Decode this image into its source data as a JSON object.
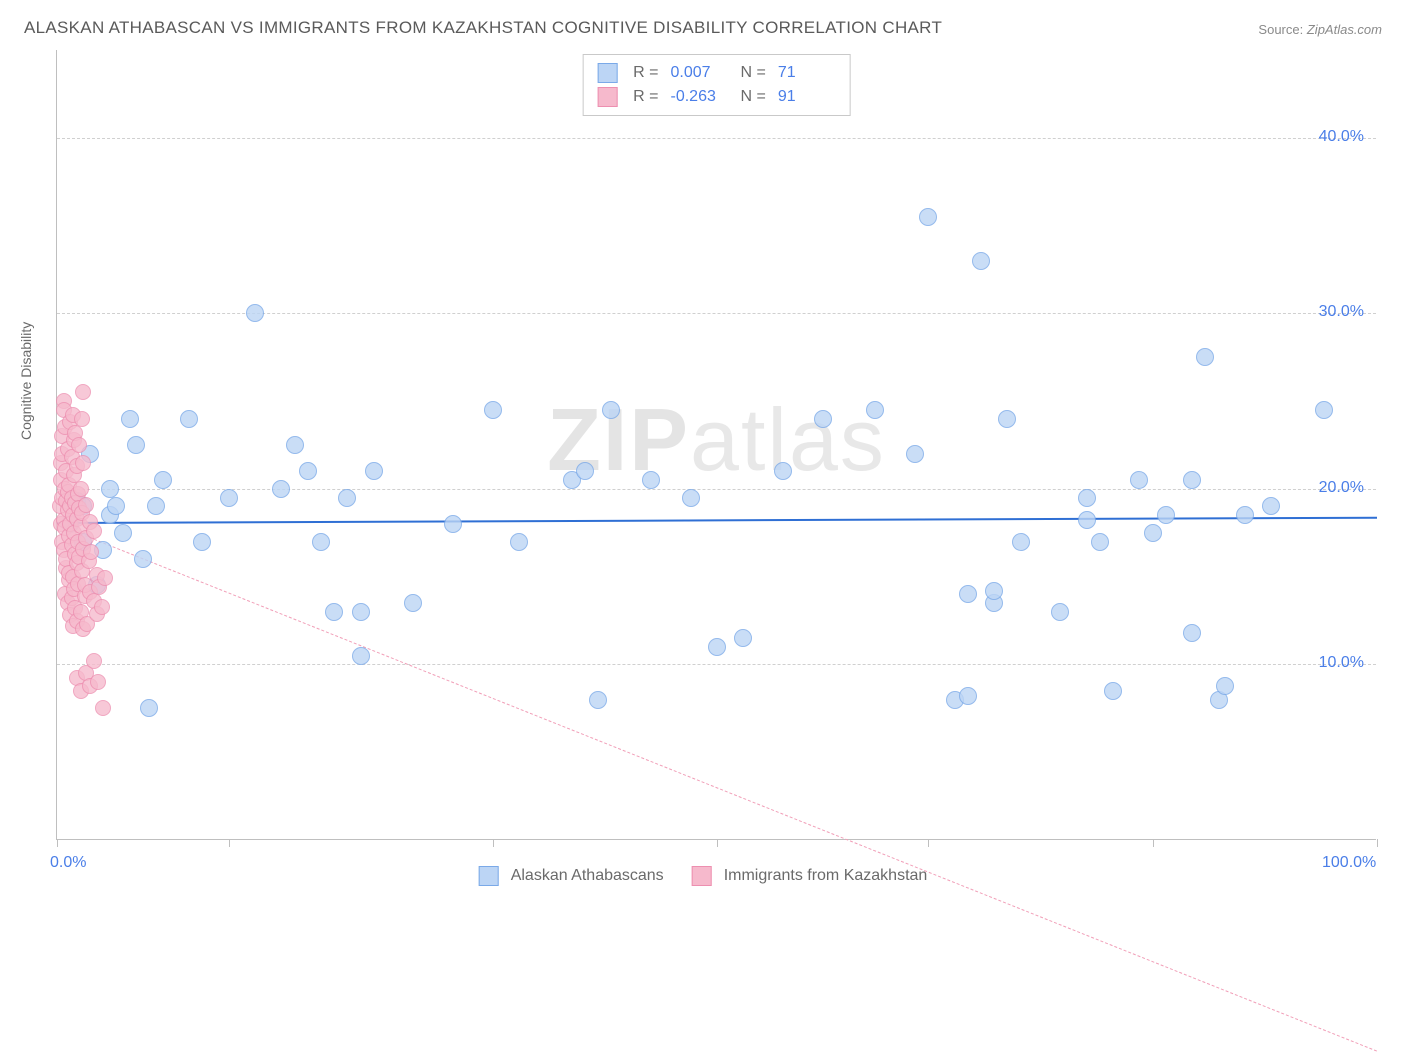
{
  "title": "ALASKAN ATHABASCAN VS IMMIGRANTS FROM KAZAKHSTAN COGNITIVE DISABILITY CORRELATION CHART",
  "source_label": "Source:",
  "source_value": "ZipAtlas.com",
  "ylabel": "Cognitive Disability",
  "watermark_bold": "ZIP",
  "watermark_light": "atlas",
  "chart": {
    "type": "scatter",
    "xlim": [
      0,
      100
    ],
    "ylim": [
      0,
      45
    ],
    "x_ticks": [
      0,
      13,
      33,
      50,
      66,
      83,
      100
    ],
    "x_tick_labels": {
      "0": "0.0%",
      "100": "100.0%"
    },
    "y_gridlines": [
      10,
      20,
      30,
      40
    ],
    "y_tick_labels": [
      "10.0%",
      "20.0%",
      "30.0%",
      "40.0%"
    ],
    "background_color": "#ffffff",
    "grid_color": "#d0d0d0",
    "axis_color": "#bfbfbf",
    "font_color_axis": "#4a7ee8",
    "font_color_label": "#6a6a6a",
    "title_fontsize": 17,
    "label_fontsize": 14,
    "tick_fontsize": 16
  },
  "series": [
    {
      "name": "Alaskan Athabascans",
      "fill": "#bcd5f5",
      "stroke": "#7aa9e8",
      "marker_r": 9,
      "opacity": 0.8,
      "trend": {
        "y_start": 18.1,
        "y_end": 18.4,
        "color": "#2f6fd4",
        "width": 2,
        "dash": false
      },
      "legend": {
        "R": "0.007",
        "N": "71"
      },
      "points": [
        [
          1,
          18
        ],
        [
          1.5,
          19.3
        ],
        [
          2,
          17
        ],
        [
          2,
          19
        ],
        [
          2.5,
          22
        ],
        [
          3,
          14.5
        ],
        [
          3.5,
          16.5
        ],
        [
          4,
          18.5
        ],
        [
          4,
          20
        ],
        [
          4.5,
          19
        ],
        [
          5,
          17.5
        ],
        [
          5.5,
          24
        ],
        [
          6,
          22.5
        ],
        [
          6.5,
          16
        ],
        [
          7,
          7.5
        ],
        [
          7.5,
          19
        ],
        [
          8,
          20.5
        ],
        [
          10,
          24
        ],
        [
          11,
          17
        ],
        [
          13,
          19.5
        ],
        [
          15,
          30
        ],
        [
          17,
          20
        ],
        [
          18,
          22.5
        ],
        [
          19,
          21
        ],
        [
          20,
          17
        ],
        [
          21,
          13
        ],
        [
          22,
          19.5
        ],
        [
          23,
          10.5
        ],
        [
          23,
          13
        ],
        [
          24,
          21
        ],
        [
          27,
          13.5
        ],
        [
          30,
          18
        ],
        [
          33,
          24.5
        ],
        [
          35,
          17
        ],
        [
          39,
          20.5
        ],
        [
          40,
          21
        ],
        [
          41,
          8
        ],
        [
          42,
          24.5
        ],
        [
          45,
          20.5
        ],
        [
          48,
          19.5
        ],
        [
          50,
          11
        ],
        [
          52,
          11.5
        ],
        [
          55,
          21
        ],
        [
          58,
          24
        ],
        [
          62,
          24.5
        ],
        [
          65,
          22
        ],
        [
          66,
          35.5
        ],
        [
          68,
          8
        ],
        [
          69,
          8.2
        ],
        [
          69,
          14
        ],
        [
          70,
          33
        ],
        [
          71,
          13.5
        ],
        [
          71,
          14.2
        ],
        [
          72,
          24
        ],
        [
          73,
          17
        ],
        [
          76,
          13
        ],
        [
          78,
          19.5
        ],
        [
          78,
          18.2
        ],
        [
          79,
          17
        ],
        [
          80,
          8.5
        ],
        [
          82,
          20.5
        ],
        [
          83,
          17.5
        ],
        [
          84,
          18.5
        ],
        [
          86,
          11.8
        ],
        [
          86,
          20.5
        ],
        [
          87,
          27.5
        ],
        [
          88,
          8
        ],
        [
          88.5,
          8.8
        ],
        [
          90,
          18.5
        ],
        [
          92,
          19
        ],
        [
          96,
          24.5
        ]
      ]
    },
    {
      "name": "Immigrants from Kazakhstan",
      "fill": "#f6b9cc",
      "stroke": "#ed8fb0",
      "marker_r": 8,
      "opacity": 0.78,
      "trend": {
        "y_start": 18.0,
        "y_end": -12.0,
        "color": "#f19fb8",
        "width": 1,
        "dash": true
      },
      "legend": {
        "R": "-0.263",
        "N": "91"
      },
      "points": [
        [
          0.2,
          19
        ],
        [
          0.3,
          18
        ],
        [
          0.3,
          20.5
        ],
        [
          0.3,
          21.5
        ],
        [
          0.4,
          17
        ],
        [
          0.4,
          19.5
        ],
        [
          0.4,
          22
        ],
        [
          0.4,
          23
        ],
        [
          0.5,
          25
        ],
        [
          0.5,
          16.5
        ],
        [
          0.5,
          24.5
        ],
        [
          0.5,
          18.2
        ],
        [
          0.6,
          14
        ],
        [
          0.6,
          17.8
        ],
        [
          0.6,
          23.5
        ],
        [
          0.6,
          20
        ],
        [
          0.7,
          15.5
        ],
        [
          0.7,
          19.3
        ],
        [
          0.7,
          16
        ],
        [
          0.7,
          21
        ],
        [
          0.8,
          13.5
        ],
        [
          0.8,
          18.8
        ],
        [
          0.8,
          22.3
        ],
        [
          0.8,
          19.8
        ],
        [
          0.9,
          14.8
        ],
        [
          0.9,
          17.3
        ],
        [
          0.9,
          20.2
        ],
        [
          0.9,
          15.2
        ],
        [
          1.0,
          12.8
        ],
        [
          1.0,
          18
        ],
        [
          1.0,
          23.8
        ],
        [
          1.0,
          19
        ],
        [
          1.1,
          21.8
        ],
        [
          1.1,
          16.8
        ],
        [
          1.1,
          13.8
        ],
        [
          1.1,
          19.5
        ],
        [
          1.2,
          15
        ],
        [
          1.2,
          18.5
        ],
        [
          1.2,
          24.2
        ],
        [
          1.2,
          12.2
        ],
        [
          1.3,
          17.5
        ],
        [
          1.3,
          20.8
        ],
        [
          1.3,
          14.3
        ],
        [
          1.3,
          22.8
        ],
        [
          1.4,
          16.3
        ],
        [
          1.4,
          19.2
        ],
        [
          1.4,
          13.2
        ],
        [
          1.4,
          23.2
        ],
        [
          1.5,
          18.3
        ],
        [
          1.5,
          15.8
        ],
        [
          1.5,
          21.3
        ],
        [
          1.5,
          12.5
        ],
        [
          1.6,
          17
        ],
        [
          1.6,
          19.7
        ],
        [
          1.6,
          14.6
        ],
        [
          1.7,
          18.9
        ],
        [
          1.7,
          22.5
        ],
        [
          1.7,
          16.1
        ],
        [
          1.8,
          13
        ],
        [
          1.8,
          20
        ],
        [
          1.8,
          17.9
        ],
        [
          1.9,
          15.3
        ],
        [
          1.9,
          24
        ],
        [
          1.9,
          18.6
        ],
        [
          2.0,
          21.5
        ],
        [
          2.0,
          12
        ],
        [
          2.0,
          16.6
        ],
        [
          2.1,
          13.9
        ],
        [
          2.1,
          14.5
        ],
        [
          2.2,
          19.1
        ],
        [
          2.2,
          17.2
        ],
        [
          2.3,
          12.3
        ],
        [
          2.4,
          15.9
        ],
        [
          2.5,
          14.1
        ],
        [
          2.5,
          18.1
        ],
        [
          2.6,
          16.4
        ],
        [
          2.8,
          13.6
        ],
        [
          2.8,
          17.6
        ],
        [
          3.0,
          12.9
        ],
        [
          3.0,
          15.1
        ],
        [
          3.2,
          14.4
        ],
        [
          3.4,
          13.3
        ],
        [
          3.6,
          14.9
        ],
        [
          1.5,
          9.2
        ],
        [
          1.8,
          8.5
        ],
        [
          2.2,
          9.5
        ],
        [
          2.5,
          8.8
        ],
        [
          2.8,
          10.2
        ],
        [
          3.1,
          9.0
        ],
        [
          3.5,
          7.5
        ],
        [
          2.0,
          25.5
        ]
      ]
    }
  ],
  "legend_bottom": [
    {
      "label": "Alaskan Athabascans",
      "fill": "#bcd5f5",
      "stroke": "#7aa9e8"
    },
    {
      "label": "Immigrants from Kazakhstan",
      "fill": "#f6b9cc",
      "stroke": "#ed8fb0"
    }
  ]
}
